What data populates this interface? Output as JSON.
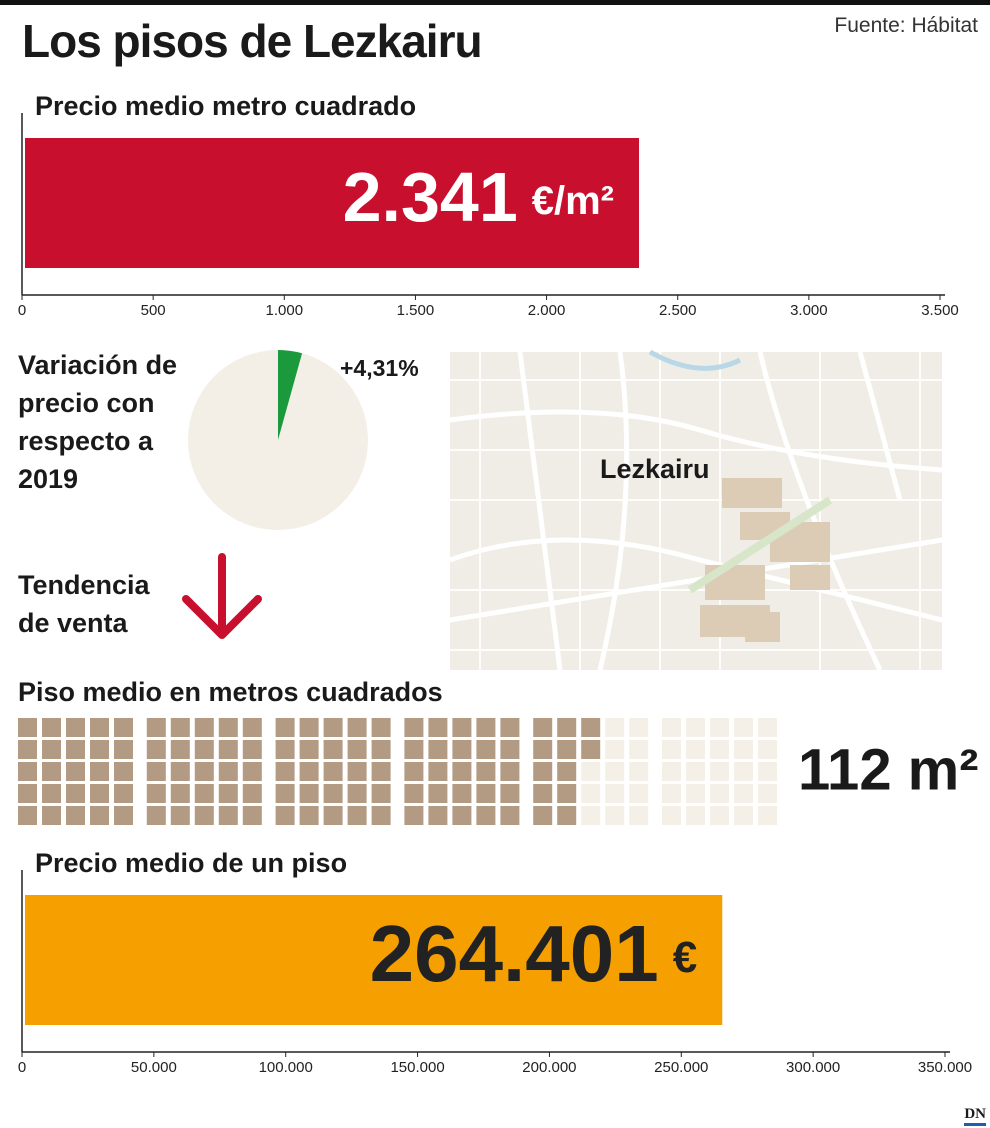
{
  "header": {
    "title": "Los pisos de Lezkairu",
    "source": "Fuente: Hábitat"
  },
  "chart_data": [
    {
      "type": "bar",
      "title": "Precio medio metro cuadrado",
      "values": [
        2341
      ],
      "value_labels": [
        "2.341"
      ],
      "unit": "€/m²",
      "color": "#c8102e",
      "label_color": "#ffffff",
      "xlim": [
        0,
        3500
      ],
      "xticks": [
        0,
        500,
        {
          "value": 1000,
          "label": "1.000"
        },
        {
          "value": 1500,
          "label": "1.500"
        },
        {
          "value": 2000,
          "label": "2.000"
        },
        {
          "value": 2500,
          "label": "2.500"
        },
        {
          "value": 3000,
          "label": "3.000"
        },
        {
          "value": 3500,
          "label": "3.500"
        }
      ]
    },
    {
      "type": "pie",
      "title": "Variación de precio con respecto a 2019",
      "values": [
        4.31
      ],
      "value_labels": [
        "+4,31%"
      ],
      "color": "#1a9a3c",
      "background_color": "#f3efe6"
    },
    {
      "type": "waffle",
      "title": "Piso medio en metros cuadrados",
      "values": [
        112
      ],
      "value_labels": [
        "112 m²"
      ],
      "total": 150,
      "color": "#b39a82",
      "empty_color": "#f4f0e8"
    },
    {
      "type": "bar",
      "title": "Precio medio de un piso",
      "values": [
        264401
      ],
      "value_labels": [
        "264.401"
      ],
      "unit": "€",
      "color": "#f5a000",
      "label_color": "#222222",
      "xlim": [
        0,
        350000
      ],
      "xticks": [
        0,
        {
          "value": 50000,
          "label": "50.000"
        },
        {
          "value": 100000,
          "label": "100.000"
        },
        {
          "value": 150000,
          "label": "150.000"
        },
        {
          "value": 200000,
          "label": "200.000"
        },
        {
          "value": 250000,
          "label": "250.000"
        },
        {
          "value": 300000,
          "label": "300.000"
        },
        {
          "value": 350000,
          "label": "350.000"
        }
      ]
    }
  ],
  "trend": {
    "label": "Tendencia de venta",
    "direction": "down",
    "color": "#c8102e"
  },
  "map": {
    "label": "Lezkairu"
  },
  "footer": {
    "logo": "DN"
  }
}
